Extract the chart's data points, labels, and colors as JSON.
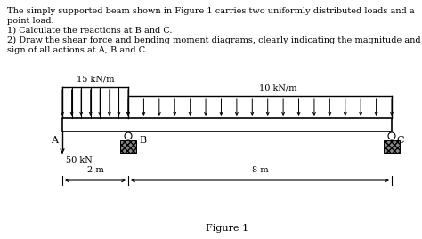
{
  "text_lines": [
    "The simply supported beam shown in Figure 1 carries two uniformly distributed loads and a",
    "point load.",
    "1) Calculate the reactions at B and C.",
    "2) Draw the shear force and bending moment diagrams, clearly indicating the magnitude and",
    "sign of all actions at A, B and C."
  ],
  "load1_label": "15 kN/m",
  "load2_label": "10 kN/m",
  "point_load_label": "50 kN",
  "dim1_label": "2 m",
  "dim2_label": "8 m",
  "figure_label": "Figure 1",
  "label_A": "A",
  "label_B": "B",
  "label_C": "C",
  "background_color": "#ffffff"
}
